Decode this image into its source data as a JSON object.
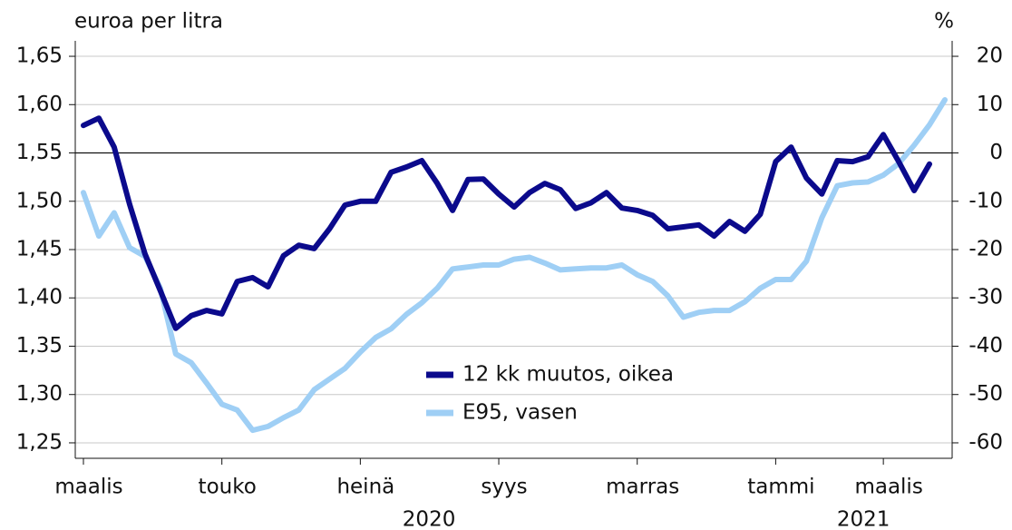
{
  "chart_data": {
    "type": "line",
    "y_label": "euroa per litra",
    "y2_label": "%",
    "categories": [
      "maalis",
      null,
      null,
      null,
      null,
      null,
      null,
      null,
      null,
      "touko",
      null,
      null,
      null,
      null,
      null,
      null,
      null,
      null,
      "heinä",
      null,
      null,
      null,
      null,
      null,
      null,
      null,
      null,
      "syys",
      null,
      null,
      null,
      null,
      null,
      null,
      null,
      null,
      "marras",
      null,
      null,
      null,
      null,
      null,
      null,
      null,
      null,
      "tammi",
      null,
      null,
      null,
      null,
      null,
      null,
      "maalis",
      null,
      null,
      null,
      null
    ],
    "years": [
      "2020",
      "2021"
    ],
    "series": [
      {
        "name": "12 kk muutos, oikea",
        "color": "#0b0a8c",
        "axis": "y2",
        "values": [
          5.7,
          7.2,
          1.2,
          -10.6,
          -20.9,
          -28.5,
          -36.3,
          -33.7,
          -32.6,
          -33.3,
          -26.6,
          -25.8,
          -27.7,
          -21.3,
          -19.1,
          -19.8,
          -15.7,
          -10.8,
          -10.0,
          -10.0,
          -4.0,
          -2.9,
          -1.6,
          -6.3,
          -11.9,
          -5.5,
          -5.4,
          -8.5,
          -11.2,
          -8.2,
          -6.3,
          -7.6,
          -11.5,
          -10.3,
          -8.2,
          -11.4,
          -11.9,
          -12.9,
          -15.7,
          -15.3,
          -14.9,
          -17.2,
          -14.2,
          -16.2,
          -12.7,
          -1.8,
          1.2,
          -5.2,
          -8.5,
          -1.6,
          -1.8,
          -0.8,
          3.8,
          -1.8,
          -7.8,
          -2.3,
          null
        ]
      },
      {
        "name": "E95, vasen",
        "color": "#9fcff5",
        "values": [
          1.509,
          1.464,
          1.488,
          1.452,
          1.443,
          1.41,
          1.342,
          1.333,
          1.312,
          1.29,
          1.284,
          1.263,
          1.267,
          1.276,
          1.284,
          1.305,
          1.316,
          1.327,
          1.344,
          1.359,
          1.368,
          1.383,
          1.395,
          1.41,
          1.43,
          1.432,
          1.434,
          1.434,
          1.44,
          1.442,
          1.436,
          1.429,
          1.43,
          1.431,
          1.431,
          1.434,
          1.424,
          1.417,
          1.402,
          1.38,
          1.385,
          1.387,
          1.387,
          1.396,
          1.41,
          1.419,
          1.419,
          1.438,
          1.483,
          1.516,
          1.519,
          1.52,
          1.527,
          1.539,
          1.558,
          1.579,
          1.605
        ]
      }
    ],
    "ylim": [
      1.234,
      1.666
    ],
    "yticks": [
      {
        "value": 1.25,
        "label": "1,25"
      },
      {
        "value": 1.3,
        "label": "1,30"
      },
      {
        "value": 1.35,
        "label": "1,35"
      },
      {
        "value": 1.4,
        "label": "1,40"
      },
      {
        "value": 1.45,
        "label": "1,45"
      },
      {
        "value": 1.5,
        "label": "1,50"
      },
      {
        "value": 1.55,
        "label": "1,55"
      },
      {
        "value": 1.6,
        "label": "1,60"
      },
      {
        "value": 1.65,
        "label": "1,65"
      }
    ],
    "y2lim": [
      -63.2,
      23.2
    ],
    "y2ticks": [
      -60,
      -50,
      -40,
      -30,
      -20,
      -10,
      0,
      10,
      20
    ],
    "grid": true
  }
}
